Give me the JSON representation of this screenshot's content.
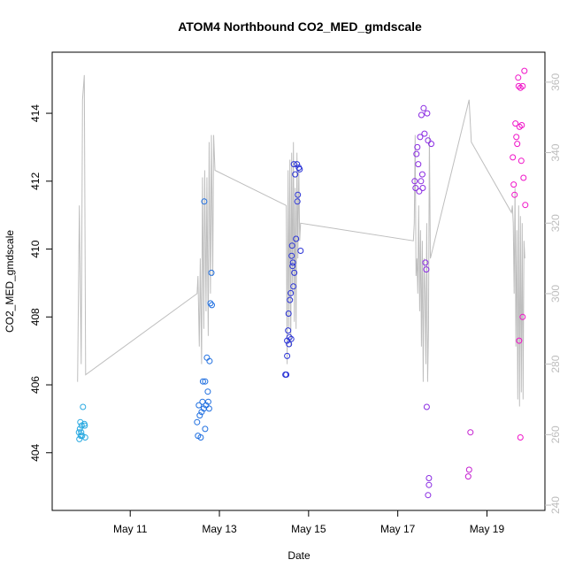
{
  "chart_data": {
    "type": "scatter",
    "title": "ATOM4 Northbound CO2_MED_gmdscale",
    "xlabel": "Date",
    "ylabel": "CO2_MED_gmdscale",
    "x_ticks": [
      {
        "day": 11,
        "label": "May 11"
      },
      {
        "day": 13,
        "label": "May 13"
      },
      {
        "day": 15,
        "label": "May 15"
      },
      {
        "day": 17,
        "label": "May 17"
      },
      {
        "day": 19,
        "label": "May 19"
      }
    ],
    "xlim": [
      9.25,
      20.3
    ],
    "ylim": [
      402.3,
      415.8
    ],
    "y_ticks": [
      404,
      406,
      408,
      410,
      412,
      414
    ],
    "y2lim": [
      238.5,
      368.5
    ],
    "y2_ticks": [
      240,
      260,
      280,
      300,
      320,
      340,
      360
    ],
    "line_series": {
      "color": "#bebebe",
      "points": [
        [
          9.82,
          275
        ],
        [
          9.86,
          325
        ],
        [
          9.9,
          280
        ],
        [
          9.93,
          355
        ],
        [
          9.97,
          362
        ],
        [
          10.0,
          277
        ],
        [
          12.5,
          300
        ],
        [
          12.52,
          305
        ],
        [
          12.55,
          285
        ],
        [
          12.57,
          310
        ],
        [
          12.6,
          280
        ],
        [
          12.62,
          333
        ],
        [
          12.65,
          290
        ],
        [
          12.67,
          335
        ],
        [
          12.7,
          295
        ],
        [
          12.72,
          333
        ],
        [
          12.75,
          288
        ],
        [
          12.77,
          343
        ],
        [
          12.8,
          300
        ],
        [
          12.82,
          345
        ],
        [
          12.85,
          305
        ],
        [
          12.87,
          345
        ],
        [
          12.9,
          335
        ],
        [
          14.5,
          325
        ],
        [
          14.52,
          280
        ],
        [
          14.54,
          335
        ],
        [
          14.56,
          290
        ],
        [
          14.58,
          338
        ],
        [
          14.6,
          285
        ],
        [
          14.62,
          340
        ],
        [
          14.64,
          300
        ],
        [
          14.66,
          343
        ],
        [
          14.68,
          292
        ],
        [
          14.7,
          330
        ],
        [
          14.72,
          290
        ],
        [
          14.74,
          340
        ],
        [
          14.76,
          310
        ],
        [
          14.78,
          335
        ],
        [
          14.8,
          315
        ],
        [
          14.82,
          320
        ],
        [
          17.35,
          315
        ],
        [
          17.37,
          320
        ],
        [
          17.39,
          345
        ],
        [
          17.41,
          305
        ],
        [
          17.43,
          310
        ],
        [
          17.45,
          300
        ],
        [
          17.47,
          325
        ],
        [
          17.49,
          295
        ],
        [
          17.51,
          318
        ],
        [
          17.53,
          285
        ],
        [
          17.55,
          315
        ],
        [
          17.57,
          275
        ],
        [
          17.59,
          310
        ],
        [
          17.61,
          300
        ],
        [
          17.63,
          280
        ],
        [
          17.65,
          320
        ],
        [
          17.67,
          275
        ],
        [
          17.69,
          290
        ],
        [
          17.71,
          345
        ],
        [
          17.73,
          310
        ],
        [
          18.6,
          355
        ],
        [
          18.65,
          343
        ],
        [
          19.55,
          323
        ],
        [
          19.57,
          325
        ],
        [
          19.59,
          320
        ],
        [
          19.61,
          300
        ],
        [
          19.63,
          330
        ],
        [
          19.65,
          285
        ],
        [
          19.67,
          318
        ],
        [
          19.69,
          270
        ],
        [
          19.71,
          325
        ],
        [
          19.73,
          268
        ],
        [
          19.75,
          322
        ],
        [
          19.77,
          272
        ],
        [
          19.79,
          320
        ],
        [
          19.81,
          270
        ],
        [
          19.83,
          315
        ],
        [
          19.85,
          310
        ]
      ]
    },
    "points": [
      {
        "x": 9.85,
        "y": 404.6,
        "c": "#29a9e1"
      },
      {
        "x": 9.86,
        "y": 404.4,
        "c": "#29a9e1"
      },
      {
        "x": 9.87,
        "y": 404.7,
        "c": "#29a9e1"
      },
      {
        "x": 9.88,
        "y": 404.9,
        "c": "#29a9e1"
      },
      {
        "x": 9.89,
        "y": 404.5,
        "c": "#29a9e1"
      },
      {
        "x": 9.9,
        "y": 404.6,
        "c": "#29a9e1"
      },
      {
        "x": 9.91,
        "y": 404.8,
        "c": "#29a9e1"
      },
      {
        "x": 9.92,
        "y": 404.5,
        "c": "#29a9e1"
      },
      {
        "x": 9.94,
        "y": 405.35,
        "c": "#29a9e1"
      },
      {
        "x": 9.97,
        "y": 404.85,
        "c": "#29a9e1"
      },
      {
        "x": 9.98,
        "y": 404.8,
        "c": "#29a9e1"
      },
      {
        "x": 9.99,
        "y": 404.45,
        "c": "#29a9e1"
      },
      {
        "x": 12.5,
        "y": 404.9,
        "c": "#1f6fe0"
      },
      {
        "x": 12.52,
        "y": 404.5,
        "c": "#1f6fe0"
      },
      {
        "x": 12.54,
        "y": 405.4,
        "c": "#1f6fe0"
      },
      {
        "x": 12.56,
        "y": 405.1,
        "c": "#1f6fe0"
      },
      {
        "x": 12.58,
        "y": 404.45,
        "c": "#1f6fe0"
      },
      {
        "x": 12.6,
        "y": 405.2,
        "c": "#1f6fe0"
      },
      {
        "x": 12.62,
        "y": 405.5,
        "c": "#1f6fe0"
      },
      {
        "x": 12.63,
        "y": 406.1,
        "c": "#1f6fe0"
      },
      {
        "x": 12.65,
        "y": 405.3,
        "c": "#1f6fe0"
      },
      {
        "x": 12.66,
        "y": 411.4,
        "c": "#1f6fe0"
      },
      {
        "x": 12.68,
        "y": 406.1,
        "c": "#1f6fe0"
      },
      {
        "x": 12.7,
        "y": 405.4,
        "c": "#1f6fe0"
      },
      {
        "x": 12.72,
        "y": 406.8,
        "c": "#1f6fe0"
      },
      {
        "x": 12.74,
        "y": 405.8,
        "c": "#1f6fe0"
      },
      {
        "x": 12.75,
        "y": 405.5,
        "c": "#1f6fe0"
      },
      {
        "x": 12.77,
        "y": 405.3,
        "c": "#1f6fe0"
      },
      {
        "x": 12.78,
        "y": 406.7,
        "c": "#1f6fe0"
      },
      {
        "x": 12.8,
        "y": 408.4,
        "c": "#1f6fe0"
      },
      {
        "x": 12.82,
        "y": 409.3,
        "c": "#1f6fe0"
      },
      {
        "x": 12.83,
        "y": 408.35,
        "c": "#1f6fe0"
      },
      {
        "x": 12.68,
        "y": 404.7,
        "c": "#1f6fe0"
      },
      {
        "x": 14.48,
        "y": 406.3,
        "c": "#2a33d6"
      },
      {
        "x": 14.5,
        "y": 406.3,
        "c": "#2a33d6"
      },
      {
        "x": 14.52,
        "y": 406.85,
        "c": "#2a33d6"
      },
      {
        "x": 14.52,
        "y": 407.3,
        "c": "#2a33d6"
      },
      {
        "x": 14.54,
        "y": 407.6,
        "c": "#2a33d6"
      },
      {
        "x": 14.55,
        "y": 408.1,
        "c": "#2a33d6"
      },
      {
        "x": 14.56,
        "y": 407.2,
        "c": "#2a33d6"
      },
      {
        "x": 14.57,
        "y": 407.4,
        "c": "#2a33d6"
      },
      {
        "x": 14.58,
        "y": 408.5,
        "c": "#2a33d6"
      },
      {
        "x": 14.6,
        "y": 408.7,
        "c": "#2a33d6"
      },
      {
        "x": 14.61,
        "y": 407.35,
        "c": "#2a33d6"
      },
      {
        "x": 14.62,
        "y": 409.8,
        "c": "#2a33d6"
      },
      {
        "x": 14.63,
        "y": 410.1,
        "c": "#2a33d6"
      },
      {
        "x": 14.64,
        "y": 409.5,
        "c": "#2a33d6"
      },
      {
        "x": 14.65,
        "y": 409.6,
        "c": "#2a33d6"
      },
      {
        "x": 14.66,
        "y": 408.9,
        "c": "#2a33d6"
      },
      {
        "x": 14.67,
        "y": 412.5,
        "c": "#2a33d6"
      },
      {
        "x": 14.68,
        "y": 409.3,
        "c": "#2a33d6"
      },
      {
        "x": 14.7,
        "y": 412.2,
        "c": "#2a33d6"
      },
      {
        "x": 14.72,
        "y": 410.3,
        "c": "#2a33d6"
      },
      {
        "x": 14.74,
        "y": 412.5,
        "c": "#2a33d6"
      },
      {
        "x": 14.76,
        "y": 411.6,
        "c": "#2a33d6"
      },
      {
        "x": 14.78,
        "y": 412.4,
        "c": "#2a33d6"
      },
      {
        "x": 14.8,
        "y": 412.35,
        "c": "#2a33d6"
      },
      {
        "x": 14.82,
        "y": 409.95,
        "c": "#2a33d6"
      },
      {
        "x": 14.75,
        "y": 411.4,
        "c": "#2a33d6"
      },
      {
        "x": 17.38,
        "y": 412.0,
        "c": "#8a2be2"
      },
      {
        "x": 17.4,
        "y": 411.8,
        "c": "#8a2be2"
      },
      {
        "x": 17.42,
        "y": 412.8,
        "c": "#8a2be2"
      },
      {
        "x": 17.44,
        "y": 413.0,
        "c": "#8a2be2"
      },
      {
        "x": 17.46,
        "y": 412.5,
        "c": "#8a2be2"
      },
      {
        "x": 17.48,
        "y": 411.7,
        "c": "#8a2be2"
      },
      {
        "x": 17.5,
        "y": 413.3,
        "c": "#8a2be2"
      },
      {
        "x": 17.52,
        "y": 412.0,
        "c": "#8a2be2"
      },
      {
        "x": 17.53,
        "y": 413.95,
        "c": "#8a2be2"
      },
      {
        "x": 17.55,
        "y": 412.2,
        "c": "#8a2be2"
      },
      {
        "x": 17.56,
        "y": 411.8,
        "c": "#8a2be2"
      },
      {
        "x": 17.58,
        "y": 414.15,
        "c": "#8a2be2"
      },
      {
        "x": 17.6,
        "y": 413.4,
        "c": "#8a2be2"
      },
      {
        "x": 17.62,
        "y": 409.6,
        "c": "#8a2be2"
      },
      {
        "x": 17.64,
        "y": 409.4,
        "c": "#8a2be2"
      },
      {
        "x": 17.66,
        "y": 414.0,
        "c": "#8a2be2"
      },
      {
        "x": 17.68,
        "y": 413.2,
        "c": "#8a2be2"
      },
      {
        "x": 17.65,
        "y": 405.35,
        "c": "#8a2be2"
      },
      {
        "x": 17.7,
        "y": 403.25,
        "c": "#8a2be2"
      },
      {
        "x": 17.7,
        "y": 403.05,
        "c": "#8a2be2"
      },
      {
        "x": 17.68,
        "y": 402.75,
        "c": "#8a2be2"
      },
      {
        "x": 17.75,
        "y": 413.1,
        "c": "#8a2be2"
      },
      {
        "x": 18.58,
        "y": 403.3,
        "c": "#c41fd0"
      },
      {
        "x": 18.6,
        "y": 403.5,
        "c": "#c41fd0"
      },
      {
        "x": 18.63,
        "y": 404.6,
        "c": "#c41fd0"
      },
      {
        "x": 19.58,
        "y": 412.7,
        "c": "#f013c8"
      },
      {
        "x": 19.6,
        "y": 411.9,
        "c": "#f013c8"
      },
      {
        "x": 19.62,
        "y": 411.6,
        "c": "#f013c8"
      },
      {
        "x": 19.64,
        "y": 413.7,
        "c": "#f013c8"
      },
      {
        "x": 19.66,
        "y": 413.3,
        "c": "#f013c8"
      },
      {
        "x": 19.68,
        "y": 413.1,
        "c": "#f013c8"
      },
      {
        "x": 19.7,
        "y": 415.05,
        "c": "#f013c8"
      },
      {
        "x": 19.71,
        "y": 414.8,
        "c": "#f013c8"
      },
      {
        "x": 19.73,
        "y": 413.6,
        "c": "#f013c8"
      },
      {
        "x": 19.75,
        "y": 414.75,
        "c": "#f013c8"
      },
      {
        "x": 19.77,
        "y": 412.6,
        "c": "#f013c8"
      },
      {
        "x": 19.78,
        "y": 413.65,
        "c": "#f013c8"
      },
      {
        "x": 19.8,
        "y": 414.8,
        "c": "#f013c8"
      },
      {
        "x": 19.82,
        "y": 412.1,
        "c": "#f013c8"
      },
      {
        "x": 19.84,
        "y": 415.25,
        "c": "#f013c8"
      },
      {
        "x": 19.86,
        "y": 411.3,
        "c": "#f013c8"
      },
      {
        "x": 19.72,
        "y": 407.3,
        "c": "#f013c8"
      },
      {
        "x": 19.8,
        "y": 408.0,
        "c": "#f013c8"
      },
      {
        "x": 19.75,
        "y": 404.45,
        "c": "#f013c8"
      }
    ]
  }
}
